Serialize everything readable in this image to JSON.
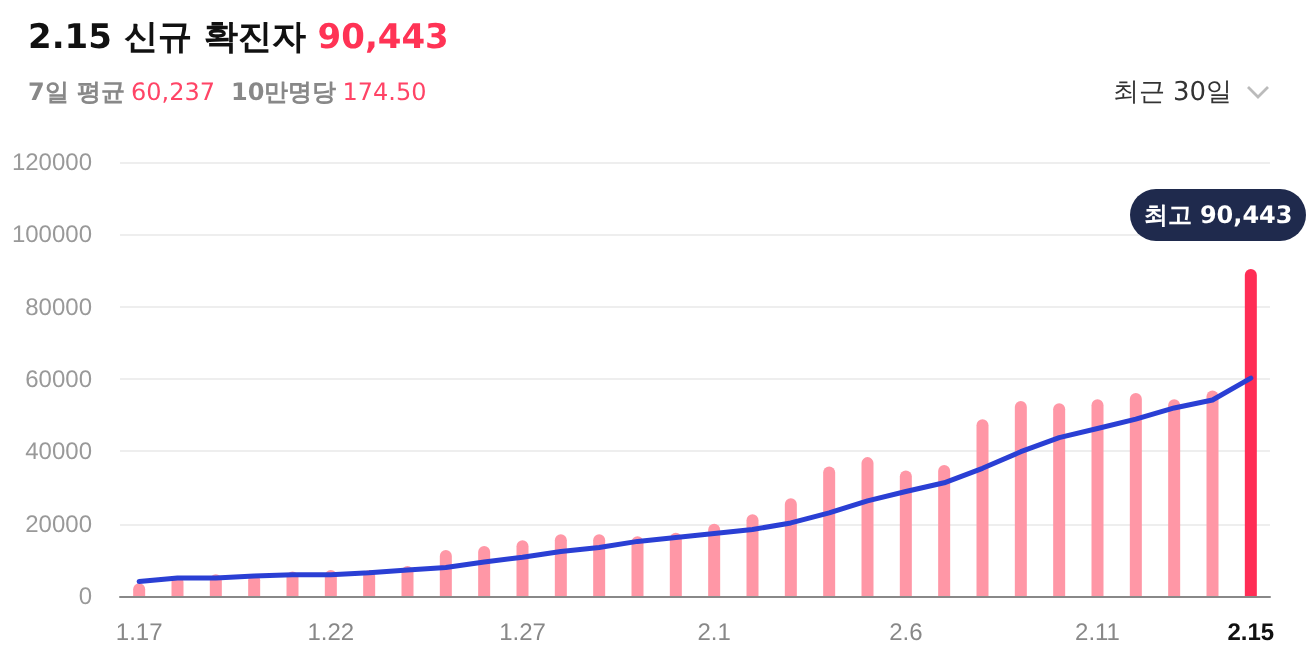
{
  "chart_data": {
    "type": "bar",
    "title": "2.15 신규 확진자",
    "annotations": [
      "90,443",
      "7일 평균",
      "60,237",
      "10만명당",
      "174.50",
      "최근 30일",
      {
        "text": "최고 90,443",
        "x": "2.15",
        "y": 90443
      }
    ],
    "categories": [
      "1.17",
      null,
      null,
      null,
      null,
      "1.22",
      null,
      null,
      null,
      null,
      "1.27",
      null,
      null,
      null,
      null,
      "2.1",
      null,
      null,
      null,
      null,
      "2.6",
      null,
      null,
      null,
      null,
      "2.11",
      null,
      null,
      null,
      "2.15"
    ],
    "series": [
      {
        "values": [
          3500,
          5500,
          6000,
          6000,
          6800,
          7200,
          7200,
          8300,
          12700,
          13800,
          15400,
          17100,
          17100,
          16500,
          17500,
          20000,
          22600,
          27000,
          35800,
          38400,
          34700,
          36200,
          48900,
          53900,
          53300,
          54400,
          56100,
          54400,
          56800,
          90443
        ],
        "colors": [
          "#ff97a6",
          "#ff97a6",
          "#ff97a6",
          "#ff97a6",
          "#ff97a6",
          "#ff97a6",
          "#ff97a6",
          "#ff97a6",
          "#ff97a6",
          "#ff97a6",
          "#ff97a6",
          "#ff97a6",
          "#ff97a6",
          "#ff97a6",
          "#ff97a6",
          "#ff97a6",
          "#ff97a6",
          "#ff97a6",
          "#ff97a6",
          "#ff97a6",
          "#ff97a6",
          "#ff97a6",
          "#ff97a6",
          "#ff97a6",
          "#ff97a6",
          "#ff97a6",
          "#ff97a6",
          "#ff97a6",
          "#ff97a6",
          "#ff2d55"
        ]
      },
      {
        "type": "line",
        "color": "#2a3fd4",
        "values": [
          4000,
          5000,
          5000,
          5500,
          5900,
          5900,
          6400,
          7200,
          7900,
          9400,
          10700,
          12300,
          13400,
          15100,
          16200,
          17300,
          18400,
          20200,
          23000,
          26300,
          28900,
          31300,
          35300,
          39900,
          43800,
          46300,
          48900,
          52000,
          54200,
          60237
        ]
      }
    ],
    "ylim": [
      0,
      120000
    ],
    "yticks": [
      0,
      20000,
      40000,
      60000,
      80000,
      100000,
      120000
    ],
    "grid": "y",
    "marker": "none",
    "line_style": "solid"
  }
}
